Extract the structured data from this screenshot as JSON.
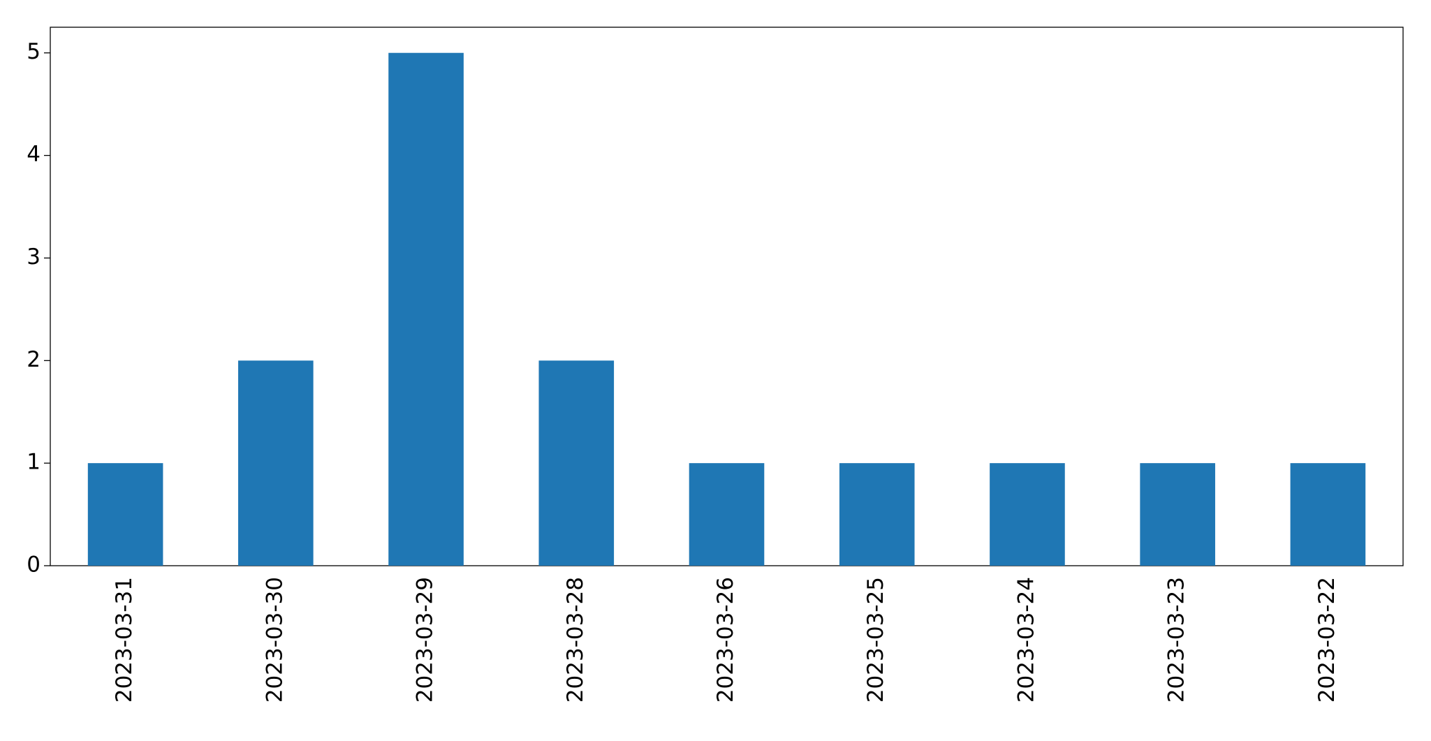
{
  "chart_data": {
    "type": "bar",
    "categories": [
      "2023-03-31",
      "2023-03-30",
      "2023-03-29",
      "2023-03-28",
      "2023-03-26",
      "2023-03-25",
      "2023-03-24",
      "2023-03-23",
      "2023-03-22"
    ],
    "values": [
      1,
      2,
      5,
      2,
      1,
      1,
      1,
      1,
      1
    ],
    "color": "#1f77b4",
    "ylim": [
      0,
      5.25
    ],
    "yticks": [
      0,
      1,
      2,
      3,
      4,
      5
    ],
    "grid": false
  }
}
